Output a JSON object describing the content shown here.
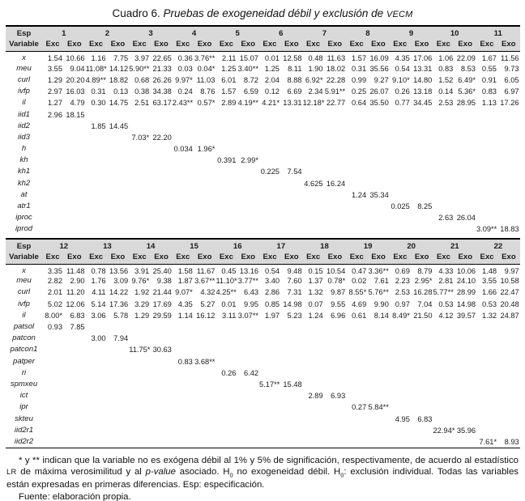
{
  "title": {
    "prefix": "Cuadro 6. ",
    "main": "Pruebas de exogeneidad débil y exclusión de ",
    "smallcaps": "VECM"
  },
  "panels": [
    {
      "esp_label": "Esp",
      "variable_label": "Variable",
      "col_headers": [
        "Exc",
        "Exo"
      ],
      "specs": [
        "1",
        "2",
        "3",
        "4",
        "5",
        "6",
        "7",
        "8",
        "9",
        "10",
        "11"
      ],
      "rows": [
        {
          "var": "x",
          "cells": [
            "1.54",
            "10.66",
            "1.16",
            "7.75",
            "3.97",
            "22.65",
            "0.36",
            "3.76**",
            "2.11",
            "15.07",
            "0.01",
            "12.58",
            "0.48",
            "11.63",
            "1.57",
            "16.09",
            "4.35",
            "17.06",
            "1.06",
            "22.09",
            "1.67",
            "11.56"
          ]
        },
        {
          "var": "meu",
          "cells": [
            "3.55",
            "9.04",
            "11.08*",
            "14.12",
            "5.90**",
            "21.33",
            "0.03",
            "0.04*",
            "1.25",
            "3.40**",
            "1.25",
            "8.11",
            "1.90",
            "18.02",
            "0.31",
            "35.56",
            "0.54",
            "13.31",
            "0.83",
            "8.53",
            "0.55",
            "9.73"
          ]
        },
        {
          "var": "curl",
          "cells": [
            "1.29",
            "20.20",
            "4.89**",
            "18.82",
            "0.68",
            "26.26",
            "9.97*",
            "11.03",
            "6.01",
            "8.72",
            "2.04",
            "8.88",
            "6.92*",
            "22.28",
            "0.99",
            "9.27",
            "9.10*",
            "14.80",
            "1.52",
            "6.49*",
            "0.91",
            "6.05"
          ]
        },
        {
          "var": "ivfp",
          "cells": [
            "2.97",
            "16.03",
            "0.31",
            "0.13",
            "0.38",
            "34.38",
            "0.24",
            "8.76",
            "1.57",
            "6.59",
            "0.12",
            "6.69",
            "2.34",
            "5.91**",
            "0.25",
            "26.07",
            "0.26",
            "13.18",
            "0.14",
            "5.36*",
            "0.83",
            "6.97"
          ]
        },
        {
          "var": "il",
          "cells": [
            "1.27",
            "4.79",
            "0.30",
            "14.75",
            "2.51",
            "63.17",
            "2.43**",
            "0.57*",
            "2.89",
            "4.19**",
            "4.21*",
            "13.31",
            "12.18*",
            "22.77",
            "0.64",
            "35.50",
            "0.77",
            "34.45",
            "2.53",
            "28.95",
            "1.13",
            "17.26"
          ]
        },
        {
          "var": "iid1",
          "cells": [
            "2.96",
            "18.15",
            "",
            "",
            "",
            "",
            "",
            "",
            "",
            "",
            "",
            "",
            "",
            "",
            "",
            "",
            "",
            "",
            "",
            "",
            "",
            ""
          ]
        },
        {
          "var": "iid2",
          "cells": [
            "",
            "",
            "1.85",
            "14.45",
            "",
            "",
            "",
            "",
            "",
            "",
            "",
            "",
            "",
            "",
            "",
            "",
            "",
            "",
            "",
            "",
            "",
            ""
          ]
        },
        {
          "var": "iid3",
          "cells": [
            "",
            "",
            "",
            "",
            "7.03*",
            "22.20",
            "",
            "",
            "",
            "",
            "",
            "",
            "",
            "",
            "",
            "",
            "",
            "",
            "",
            "",
            "",
            ""
          ]
        },
        {
          "var": "h",
          "cells": [
            "",
            "",
            "",
            "",
            "",
            "",
            "0.034",
            "1.96*",
            "",
            "",
            "",
            "",
            "",
            "",
            "",
            "",
            "",
            "",
            "",
            "",
            "",
            ""
          ]
        },
        {
          "var": "kh",
          "cells": [
            "",
            "",
            "",
            "",
            "",
            "",
            "",
            "",
            "0.391",
            "2.99*",
            "",
            "",
            "",
            "",
            "",
            "",
            "",
            "",
            "",
            "",
            "",
            ""
          ]
        },
        {
          "var": "kh1",
          "cells": [
            "",
            "",
            "",
            "",
            "",
            "",
            "",
            "",
            "",
            "",
            "0.225",
            "7.54",
            "",
            "",
            "",
            "",
            "",
            "",
            "",
            "",
            "",
            ""
          ]
        },
        {
          "var": "kh2",
          "cells": [
            "",
            "",
            "",
            "",
            "",
            "",
            "",
            "",
            "",
            "",
            "",
            "",
            "4.625",
            "16.24",
            "",
            "",
            "",
            "",
            "",
            "",
            "",
            ""
          ]
        },
        {
          "var": "at",
          "cells": [
            "",
            "",
            "",
            "",
            "",
            "",
            "",
            "",
            "",
            "",
            "",
            "",
            "",
            "",
            "1.24",
            "35.34",
            "",
            "",
            "",
            "",
            "",
            ""
          ]
        },
        {
          "var": "atr1",
          "cells": [
            "",
            "",
            "",
            "",
            "",
            "",
            "",
            "",
            "",
            "",
            "",
            "",
            "",
            "",
            "",
            "",
            "0.025",
            "8.25",
            "",
            "",
            "",
            ""
          ]
        },
        {
          "var": "iproc",
          "cells": [
            "",
            "",
            "",
            "",
            "",
            "",
            "",
            "",
            "",
            "",
            "",
            "",
            "",
            "",
            "",
            "",
            "",
            "",
            "2.63",
            "26.04",
            "",
            ""
          ]
        },
        {
          "var": "iprod",
          "cells": [
            "",
            "",
            "",
            "",
            "",
            "",
            "",
            "",
            "",
            "",
            "",
            "",
            "",
            "",
            "",
            "",
            "",
            "",
            "",
            "",
            "3.09**",
            "18.83"
          ]
        }
      ]
    },
    {
      "esp_label": "Esp",
      "variable_label": "Variable",
      "col_headers": [
        "Exc",
        "Exo"
      ],
      "specs": [
        "12",
        "13",
        "14",
        "15",
        "16",
        "17",
        "18",
        "19",
        "20",
        "21",
        "22"
      ],
      "rows": [
        {
          "var": "x",
          "cells": [
            "3.35",
            "11.48",
            "0.78",
            "13.56",
            "3.91",
            "25.40",
            "1.58",
            "11.67",
            "0.45",
            "13.16",
            "0.54",
            "9.48",
            "0.15",
            "10.54",
            "0.47",
            "3.36**",
            "0.69",
            "8.79",
            "4.33",
            "10.06",
            "1.48",
            "9.97"
          ]
        },
        {
          "var": "meu",
          "cells": [
            "2.82",
            "2.90",
            "1.76",
            "3.09",
            "9.76*",
            "9.38",
            "1.87",
            "3.67**",
            "11.10*",
            "3.77**",
            "3.40",
            "7.60",
            "1.37",
            "0.78*",
            "0.02",
            "7.61",
            "2.23",
            "2.95*",
            "2.81",
            "24.10",
            "3.55",
            "10.58"
          ]
        },
        {
          "var": "curl",
          "cells": [
            "2.01",
            "11.20",
            "4.11",
            "14.22",
            "1.92",
            "21.44",
            "9.07*",
            "4.32",
            "4.25**",
            "6.43",
            "2.86",
            "7.31",
            "1.32",
            "9.87",
            "8.55*",
            "5.76**",
            "2.53",
            "16.28",
            "5.77**",
            "28.99",
            "1.66",
            "22.47"
          ]
        },
        {
          "var": "ivfp",
          "cells": [
            "5.02",
            "12.06",
            "5.14",
            "17.36",
            "3.29",
            "17.69",
            "4.35",
            "5.27",
            "0.01",
            "9.95",
            "0.85",
            "14.98",
            "0.07",
            "9.55",
            "4.69",
            "9.90",
            "0.97",
            "7.04",
            "0.53",
            "14.98",
            "0.53",
            "20.48"
          ]
        },
        {
          "var": "il",
          "cells": [
            "8.00*",
            "6.83",
            "3.06",
            "5.78",
            "1.29",
            "29.59",
            "1.14",
            "16.12",
            "3.11",
            "3.07**",
            "1.97",
            "5.23",
            "1.24",
            "6.96",
            "0.61",
            "8.14",
            "8.49*",
            "21.50",
            "4.12",
            "39.57",
            "1.32",
            "24.87"
          ]
        },
        {
          "var": "patsol",
          "cells": [
            "0.93",
            "7.85",
            "",
            "",
            "",
            "",
            "",
            "",
            "",
            "",
            "",
            "",
            "",
            "",
            "",
            "",
            "",
            "",
            "",
            "",
            "",
            ""
          ]
        },
        {
          "var": "patcon",
          "cells": [
            "",
            "",
            "3.00",
            "7.94",
            "",
            "",
            "",
            "",
            "",
            "",
            "",
            "",
            "",
            "",
            "",
            "",
            "",
            "",
            "",
            "",
            "",
            ""
          ]
        },
        {
          "var": "patcon1",
          "cells": [
            "",
            "",
            "",
            "",
            "11.75*",
            "30.63",
            "",
            "",
            "",
            "",
            "",
            "",
            "",
            "",
            "",
            "",
            "",
            "",
            "",
            "",
            "",
            ""
          ]
        },
        {
          "var": "patper",
          "cells": [
            "",
            "",
            "",
            "",
            "",
            "",
            "0.83",
            "3.68**",
            "",
            "",
            "",
            "",
            "",
            "",
            "",
            "",
            "",
            "",
            "",
            "",
            "",
            ""
          ]
        },
        {
          "var": "ri",
          "cells": [
            "",
            "",
            "",
            "",
            "",
            "",
            "",
            "",
            "0.26",
            "6.42",
            "",
            "",
            "",
            "",
            "",
            "",
            "",
            "",
            "",
            "",
            "",
            ""
          ]
        },
        {
          "var": "spmxeu",
          "cells": [
            "",
            "",
            "",
            "",
            "",
            "",
            "",
            "",
            "",
            "",
            "5.17**",
            "15.48",
            "",
            "",
            "",
            "",
            "",
            "",
            "",
            "",
            "",
            ""
          ]
        },
        {
          "var": "ict",
          "cells": [
            "",
            "",
            "",
            "",
            "",
            "",
            "",
            "",
            "",
            "",
            "",
            "",
            "2.89",
            "6.93",
            "",
            "",
            "",
            "",
            "",
            "",
            "",
            ""
          ]
        },
        {
          "var": "ipr",
          "cells": [
            "",
            "",
            "",
            "",
            "",
            "",
            "",
            "",
            "",
            "",
            "",
            "",
            "",
            "",
            "0.27",
            "5.84**",
            "",
            "",
            "",
            "",
            "",
            ""
          ]
        },
        {
          "var": "skteu",
          "cells": [
            "",
            "",
            "",
            "",
            "",
            "",
            "",
            "",
            "",
            "",
            "",
            "",
            "",
            "",
            "",
            "",
            "4.95",
            "6.83",
            "",
            "",
            "",
            ""
          ]
        },
        {
          "var": "iid2r1",
          "cells": [
            "",
            "",
            "",
            "",
            "",
            "",
            "",
            "",
            "",
            "",
            "",
            "",
            "",
            "",
            "",
            "",
            "",
            "",
            "22.94*",
            "35.96",
            "",
            ""
          ]
        },
        {
          "var": "iid2r2",
          "cells": [
            "",
            "",
            "",
            "",
            "",
            "",
            "",
            "",
            "",
            "",
            "",
            "",
            "",
            "",
            "",
            "",
            "",
            "",
            "",
            "",
            "7.61*",
            "8.93"
          ]
        }
      ]
    }
  ],
  "note": {
    "p1": "* y ** indican que la variable no es exógena débil al 1% y 5% de significación, respectivamente, de acuerdo al estadístico ",
    "lr": "LR",
    "p2": " de máxima verosimilitud y al ",
    "pvalue": "p-value",
    "p3": " asociado. H",
    "h0sub_a": "0",
    "p4": " no exogeneidad débil. H",
    "h0sub_b": "0",
    "p5": ": exclusión individual. Todas las variables están expresadas en primeras diferencias. Esp: especificación.",
    "source": "Fuente: elaboración propia."
  },
  "colors": {
    "header_bg": "#d9d9d9",
    "border": "#000000",
    "text": "#1a1a1a"
  }
}
